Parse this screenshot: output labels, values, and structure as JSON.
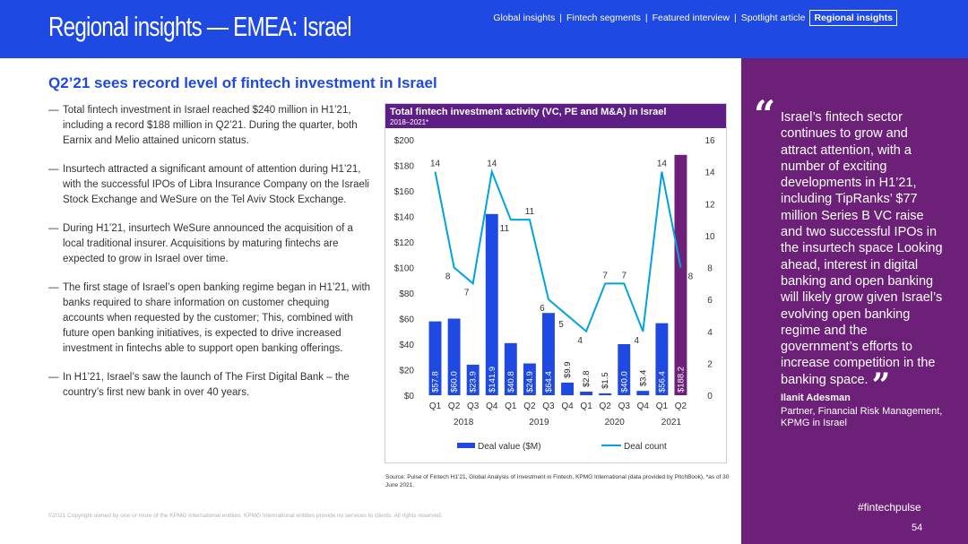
{
  "header": {
    "title": "Regional insights — EMEA: Israel",
    "nav": [
      "Global insights",
      "Fintech segments",
      "Featured interview",
      "Spotlight article"
    ],
    "nav_active": "Regional insights"
  },
  "headline": "Q2’21 sees record level of fintech investment in Israel",
  "bullets": [
    "Total fintech investment in Israel reached $240 million in H1’21, including a record $188 million in Q2’21. During the quarter, both Earnix and Melio attained unicorn status.",
    "Insurtech attracted a significant amount of attention during H1’21, with the successful IPOs of Libra Insurance Company on the Israeli Stock Exchange and WeSure on the Tel Aviv Stock Exchange.",
    "During H1’21, insurtech WeSure announced the acquisition of a local traditional insurer. Acquisitions by maturing fintechs are expected to grow in Israel over time.",
    "The first stage of Israel’s open banking regime began in H1’21, with banks required to share information on customer chequing accounts when requested by the customer; This, combined with future open banking initiatives, is expected to drive increased investment in fintechs able to support open banking offerings.",
    "In H1’21, Israel’s saw the launch of The First Digital Bank – the country’s first new bank in over 40 years."
  ],
  "bullet_dash": "—",
  "chart_data": {
    "type": "bar",
    "title": "Total fintech investment activity (VC, PE and M&A) in Israel",
    "subtitle": "2018–2021*",
    "categories": [
      "Q1",
      "Q2",
      "Q3",
      "Q4",
      "Q1",
      "Q2",
      "Q3",
      "Q4",
      "Q1",
      "Q2",
      "Q3",
      "Q4",
      "Q1",
      "Q2"
    ],
    "years": [
      {
        "label": "2018",
        "start": 0,
        "end": 3
      },
      {
        "label": "2019",
        "start": 4,
        "end": 7
      },
      {
        "label": "2020",
        "start": 8,
        "end": 11
      },
      {
        "label": "2021",
        "start": 12,
        "end": 13
      }
    ],
    "series": [
      {
        "name": "Deal value ($M)",
        "type": "bar",
        "values": [
          57.8,
          60.0,
          23.9,
          141.9,
          40.8,
          24.9,
          64.4,
          9.9,
          2.8,
          1.5,
          40.0,
          3.4,
          56.4,
          188.2
        ],
        "labels": [
          "$57.8",
          "$60.0",
          "$23.9",
          "$141.9",
          "$40.8",
          "$24.9",
          "$64.4",
          "$9.9",
          "$2.8",
          "$1.5",
          "$40.0",
          "$3.4",
          "$56.4",
          "$188.2"
        ]
      },
      {
        "name": "Deal count",
        "type": "line",
        "values": [
          14,
          8,
          7,
          14,
          11,
          11,
          6,
          5,
          4,
          7,
          7,
          4,
          14,
          8
        ]
      }
    ],
    "y_left": {
      "min": 0,
      "max": 200,
      "ticks": [
        "$0",
        "$20",
        "$40",
        "$60",
        "$80",
        "$100",
        "$120",
        "$140",
        "$160",
        "$180",
        "$200"
      ]
    },
    "y_right": {
      "min": 0,
      "max": 16,
      "ticks": [
        "0",
        "2",
        "4",
        "6",
        "8",
        "10",
        "12",
        "14",
        "16"
      ]
    },
    "legend_position": "bottom",
    "colors": {
      "bar": "#1e49e2",
      "bar_highlight": "#6d2077",
      "line": "#00a3e0"
    }
  },
  "source": "Source: Pulse of Fintech H1’21, Global Analysis of Investment in Fintech, KPMG International (data provided by PitchBook), *as of 30 June 2021.",
  "copyright": "©2021 Copyright owned by one or more of the KPMG International entities. KPMG International entities provide no services to clients. All rights reserved.",
  "quote": {
    "open_mark": "“",
    "text": "Israel’s fintech sector continues to grow and attract attention, with a number of exciting developments in H1’21, including TipRanks’ $77 million Series B VC raise and two successful IPOs in the insurtech space Looking ahead, interest in digital banking and open banking will likely grow given Israel’s evolving open banking regime and the government’s efforts to increase competition in the banking space.",
    "close_mark": "”",
    "author": "Ilanit Adesman",
    "role": "Partner, Financial Risk Management, KPMG in Israel"
  },
  "hashtag": "#fintechpulse",
  "page_number": "54",
  "colors": {
    "header": "#1e49e2",
    "quote_panel": "#6d2077",
    "chart_header": "#5d1f86"
  }
}
